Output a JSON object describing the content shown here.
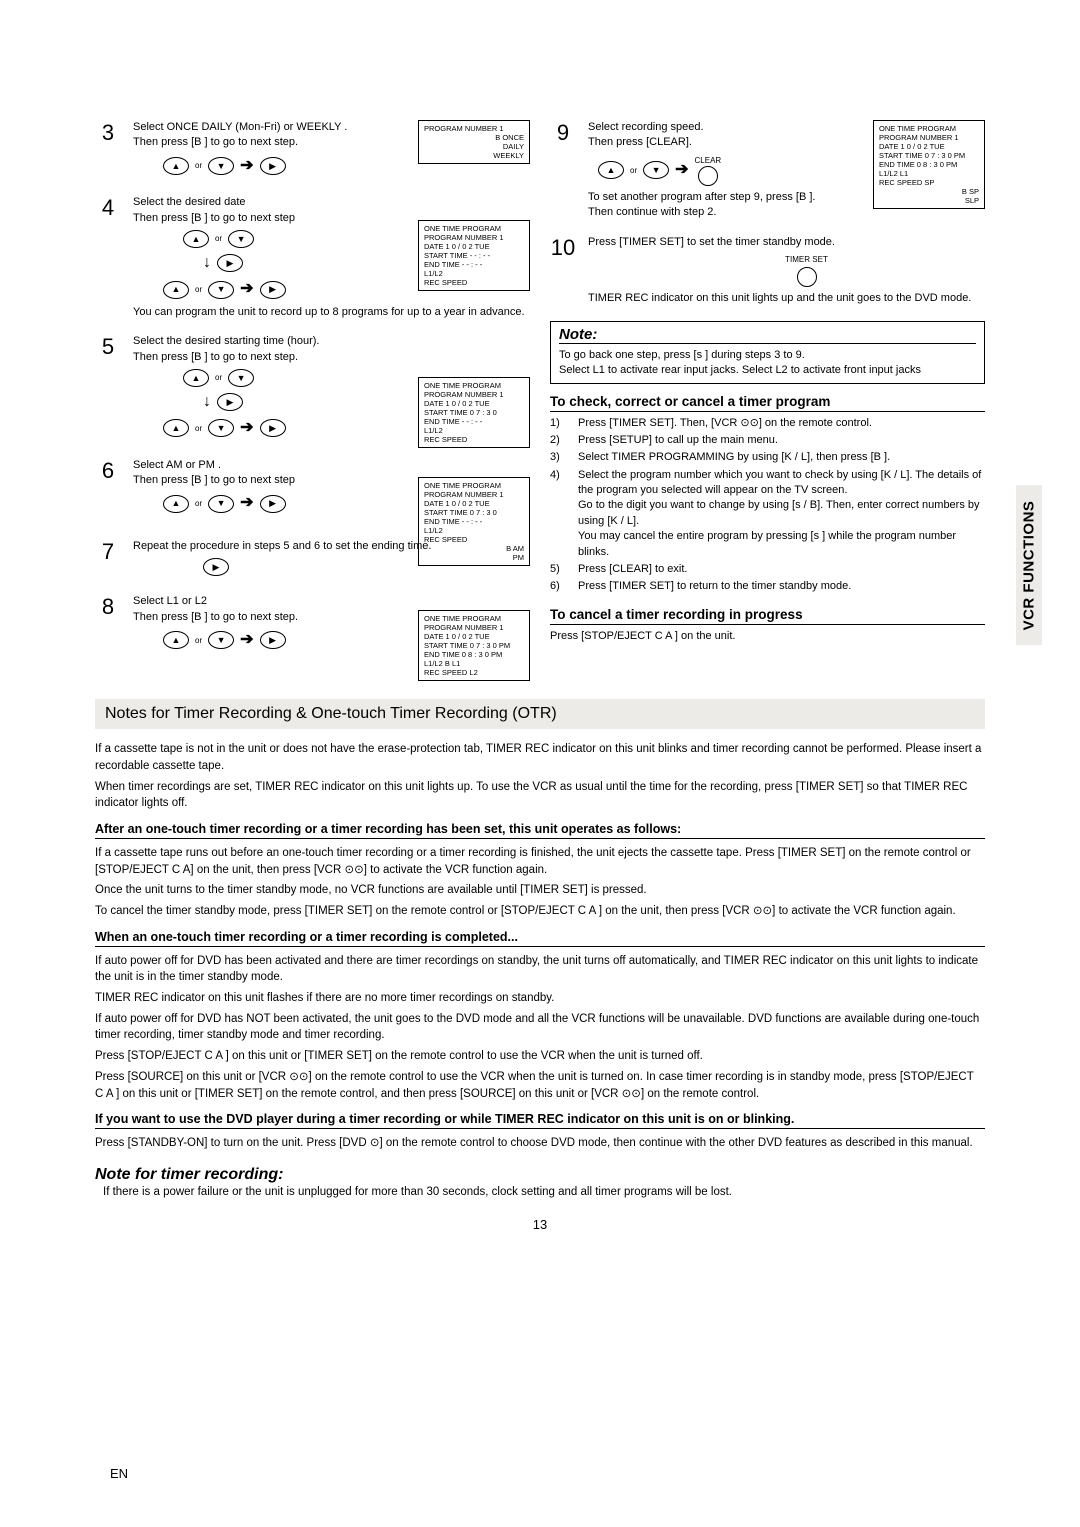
{
  "side_tab": "VCR FUNCTIONS",
  "left": {
    "step3": {
      "n": "3",
      "l1": "Select ONCE DAILY (Mon-Fri) or WEEKLY .",
      "l2": "Then press [B ] to go to next step."
    },
    "osd3": {
      "t": "PROGRAM NUMBER 1",
      "r1": "B  ONCE",
      "r2": "DAILY",
      "r3": "WEEKLY"
    },
    "step4": {
      "n": "4",
      "l1": "Select the desired date",
      "l2": "Then press [B ] to go to next step"
    },
    "osd4": {
      "t": "ONE TIME PROGRAM",
      "r1": "PROGRAM NUMBER 1",
      "r2": "DATE          1 0 / 0 2 TUE",
      "r3": "START   TIME   - - : - -",
      "r4": "END      TIME   - - : - -",
      "r5": "L1/L2",
      "r6": "REC     SPEED"
    },
    "step4_note": "You can program the unit to record up to 8 programs for up to a year in advance.",
    "step5": {
      "n": "5",
      "l1": "Select the desired starting time (hour).",
      "l2": "Then press [B ] to go to next step."
    },
    "osd5": {
      "t": "ONE TIME PROGRAM",
      "r1": "PROGRAM NUMBER  1",
      "r2": "DATE          1 0 / 0 2 TUE",
      "r3": "START   TIME  0 7 : 3 0",
      "r4": "END      TIME   - - : - -",
      "r5": "L1/L2",
      "r6": "REC     SPEED"
    },
    "step6": {
      "n": "6",
      "l1": "Select AM or PM .",
      "l2": "Then press [B ] to go to next step"
    },
    "osd6": {
      "t": "ONE TIME PROGRAM",
      "r1": "PROGRAM NUMBER  1",
      "r2": "DATE          1 0 / 0 2 TUE",
      "r3": "START  TIME  0 7 : 3 0",
      "r4": "END     TIME   - - : - -",
      "r5": "L1/L2",
      "r6": "REC     SPEED",
      "r7": "B   AM",
      "r8": "PM"
    },
    "step7": {
      "n": "7",
      "l1": "Repeat the procedure in steps 5 and 6 to set the ending time."
    },
    "step8": {
      "n": "8",
      "l1": "Select L1 or L2",
      "l2": "Then press [B ] to go to next step."
    },
    "osd8": {
      "t": "ONE TIME PROGRAM",
      "r1": "PROGRAM NUMBER  1",
      "r2": "DATE          1 0 / 0 2 TUE",
      "r3": "START  TIME 0 7 : 3 0    PM",
      "r4": "END    TIME 0 8 : 3 0    PM",
      "r5": "L1/L2       B L1",
      "r6": "REC    SPEED  L2"
    }
  },
  "right": {
    "step9": {
      "n": "9",
      "l1": "Select recording speed.",
      "l2": "Then press [CLEAR]."
    },
    "osd9": {
      "t": "ONE TIME PROGRAM",
      "r1": "PROGRAM NUMBER   1",
      "r2": "DATE           1 0 / 0 2 TUE",
      "r3": "START  TIME 0 7 : 3 0    PM",
      "r4": "END    TIME  0 8 : 3 0   PM",
      "r5": "L1/L2           L1",
      "r6": "REC    SPEED  SP",
      "r7": "B   SP",
      "r8": "SLP"
    },
    "clear_label": "CLEAR",
    "step9_note": "To set another program after step 9, press [B ].\nThen continue with step 2.",
    "step10": {
      "n": "10",
      "l1": "Press [TIMER SET] to set the timer standby mode."
    },
    "timer_set_label": "TIMER SET",
    "step10_note": "TIMER REC indicator on this unit lights up and the unit goes to the DVD mode.",
    "note_title": "Note:",
    "note_body": "To go back one step, press [s ] during steps 3 to 9.\nSelect L1 to activate rear input jacks. Select L2 to activate front input jacks",
    "check_head": "To check, correct or cancel a timer program",
    "check_items": [
      {
        "n": "1)",
        "t": "Press [TIMER SET]. Then, [VCR ⊙⊙] on the remote control."
      },
      {
        "n": "2)",
        "t": "Press [SETUP] to call up the main menu."
      },
      {
        "n": "3)",
        "t": "Select TIMER PROGRAMMING by using [K / L], then press [B ]."
      },
      {
        "n": "4)",
        "t": "Select the program number which you want to check by using [K / L]. The details of the program you selected will appear on the TV screen.\nGo to the digit you want to change by using [s / B]. Then, enter correct numbers by using [K / L].\nYou may cancel the entire program by pressing [s ] while the program number blinks."
      },
      {
        "n": "5)",
        "t": "Press [CLEAR] to exit."
      },
      {
        "n": "6)",
        "t": "Press [TIMER SET] to return to the timer standby mode."
      }
    ],
    "cancel_head": "To cancel a timer recording in progress",
    "cancel_body": "Press [STOP/EJECT C A ] on the unit."
  },
  "notes_header": "Notes for Timer Recording & One-touch Timer Recording (OTR)",
  "notes_p1": "If a cassette tape is not in the unit or does not have the erase-protection tab, TIMER REC indicator on this unit blinks and timer recording cannot be performed. Please insert a recordable cassette tape.",
  "notes_p2": "When timer recordings are set, TIMER REC indicator on this unit lights up. To use the VCR as usual until the time for the recording, press [TIMER SET] so that TIMER REC indicator lights off.",
  "after_head": "After an one-touch timer recording or a timer recording has been set, this unit operates as follows:",
  "after_p1": "If a cassette tape runs out before an one-touch timer recording or a timer recording is finished, the unit ejects the cassette tape. Press [TIMER SET] on the remote control or [STOP/EJECT C A] on the unit, then press [VCR ⊙⊙] to activate the VCR function again.",
  "after_p2": "Once the unit turns to the timer standby mode, no VCR functions are available until [TIMER SET] is pressed.",
  "after_p3": "To cancel the timer standby mode, press [TIMER SET] on the remote control or [STOP/EJECT C A ] on the unit, then press [VCR ⊙⊙] to activate the VCR function again.",
  "when_head": "When an one-touch timer recording or a timer recording is completed...",
  "when_p1": "If auto power off for DVD has been activated and there are timer recordings on standby, the unit turns off automatically, and TIMER REC indicator on this unit lights to indicate the unit is in the timer standby mode.",
  "when_p2": "TIMER REC indicator on this unit flashes if there are no more timer recordings on standby.",
  "when_p3": "If auto power off for DVD has NOT been activated, the unit goes to the DVD mode and all the VCR functions will be unavailable. DVD functions are available during one-touch timer recording, timer standby mode and timer recording.",
  "when_p4": "Press [STOP/EJECT C A ] on this unit or [TIMER SET] on the remote control to use the VCR when the unit is turned off.",
  "when_p5": "Press [SOURCE] on this unit or [VCR ⊙⊙] on the remote control to use the VCR when the unit is turned on. In case timer recording is in standby mode, press [STOP/EJECT C A ] on this unit or [TIMER SET] on the remote control, and then press [SOURCE] on this unit or [VCR ⊙⊙] on the remote control.",
  "ifyou_head": "If you want to use the DVD player during a timer recording or while TIMER REC indicator on this unit is on or blinking.",
  "ifyou_p": "Press [STANDBY-ON] to turn on the unit. Press [DVD ⊙] on the remote control to choose DVD mode, then continue with the other DVD features as described in this manual.",
  "note_timer_head": "Note for timer recording:",
  "note_timer_body": "If there is a power failure or the unit is unplugged for more than 30 seconds, clock setting and all timer programs will be lost.",
  "page_num": "13",
  "en": "EN",
  "or": "or"
}
